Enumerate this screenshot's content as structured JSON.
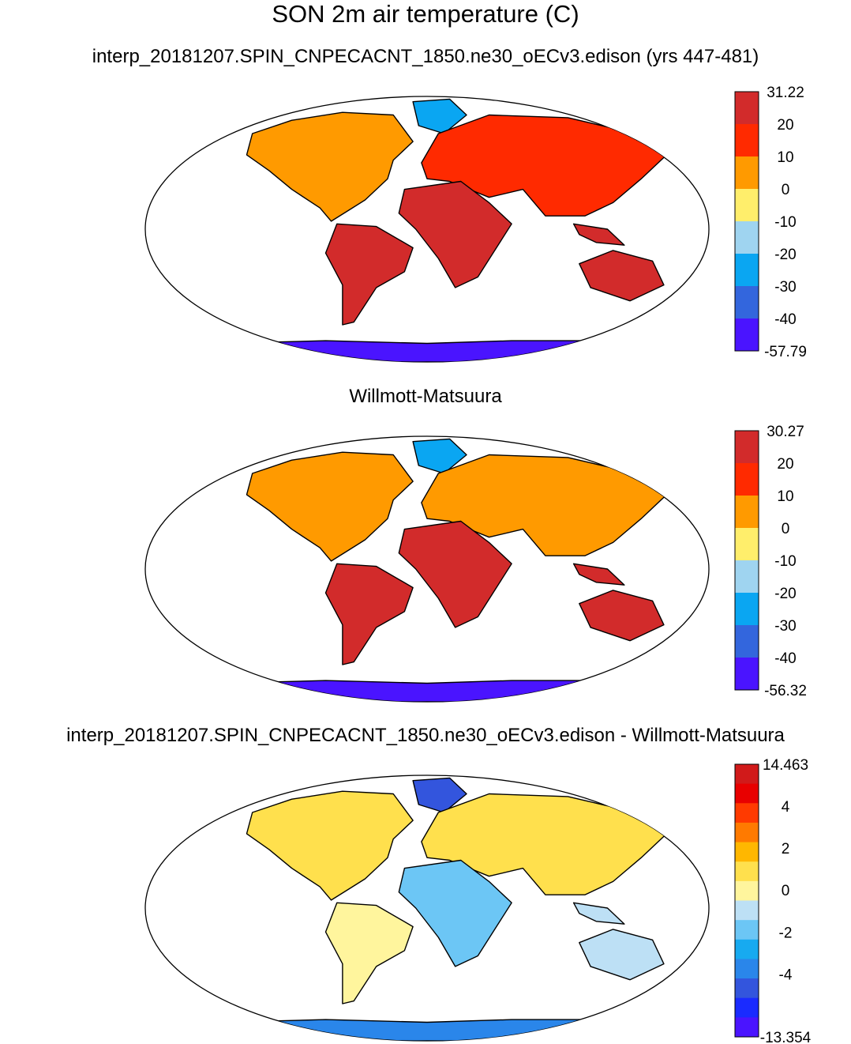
{
  "title": "SON 2m air temperature (C)",
  "panels": [
    {
      "title": "interp_20181207.SPIN_CNPECACNT_1850.ne30_oECv3.edison (yrs 447-481)",
      "colorbar": {
        "labels": [
          "31.22",
          "20",
          "10",
          "0",
          "-10",
          "-20",
          "-30",
          "-40",
          "-57.79"
        ],
        "colors": [
          "#d22b2b",
          "#ff2a00",
          "#ff9a00",
          "#ffee6b",
          "#9fd4f0",
          "#0aa6f2",
          "#3366dd",
          "#4a14ff"
        ]
      }
    },
    {
      "title": "Willmott-Matsuura",
      "colorbar": {
        "labels": [
          "30.27",
          "20",
          "10",
          "0",
          "-10",
          "-20",
          "-30",
          "-40",
          "-56.32"
        ],
        "colors": [
          "#d22b2b",
          "#ff2a00",
          "#ff9a00",
          "#ffee6b",
          "#9fd4f0",
          "#0aa6f2",
          "#3366dd",
          "#4a14ff"
        ]
      }
    },
    {
      "title": "interp_20181207.SPIN_CNPECACNT_1850.ne30_oECv3.edison - Willmott-Matsuura",
      "colorbar": {
        "labels": [
          "14.463",
          "",
          "4",
          "",
          "2",
          "",
          "0",
          "",
          "-2",
          "",
          "-4",
          "",
          "",
          "-13.354"
        ],
        "colors": [
          "#d11a1a",
          "#e80000",
          "#ff3a00",
          "#ff7a00",
          "#ffb700",
          "#ffe04d",
          "#fff59d",
          "#bde0f5",
          "#6cc6f5",
          "#17aaf0",
          "#2a86ea",
          "#3355dd",
          "#1a2bff",
          "#4a14ff"
        ]
      }
    }
  ]
}
